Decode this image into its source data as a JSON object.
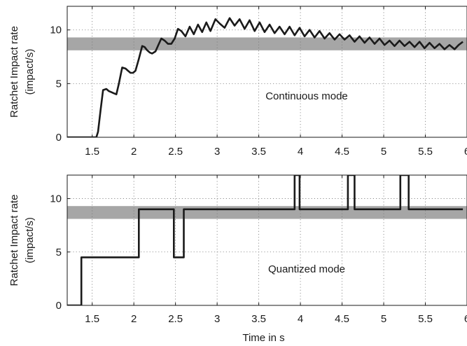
{
  "chart_data": [
    {
      "type": "line",
      "annotation": "Continuous mode",
      "xlabel": "",
      "ylabel": "Ratchet Impact rate",
      "ylabel_unit": "(impact/s)",
      "xlim": [
        1.2,
        6.0
      ],
      "ylim": [
        0,
        12.2
      ],
      "x_ticks": [
        1.5,
        2,
        2.5,
        3,
        3.5,
        4,
        4.5,
        5,
        5.5,
        6
      ],
      "x_tick_labels": [
        "1.5",
        "2",
        "2.5",
        "3",
        "3.5",
        "4",
        "4.5",
        "5",
        "5.5",
        "6"
      ],
      "y_ticks": [
        0,
        5,
        10
      ],
      "y_tick_labels": [
        "0",
        "5",
        "10"
      ],
      "grid": true,
      "band": {
        "y_low": 8.1,
        "y_high": 9.3,
        "color": "#a6a6a6"
      },
      "line_color": "#1a1a1a",
      "series": [
        {
          "x": [
            1.2,
            1.55,
            1.57,
            1.6,
            1.63,
            1.67,
            1.7,
            1.73,
            1.76,
            1.79,
            1.82,
            1.86,
            1.9,
            1.93,
            1.96,
            1.99,
            2.02,
            2.06,
            2.1,
            2.13,
            2.16,
            2.19,
            2.22,
            2.26,
            2.3,
            2.33,
            2.37,
            2.41,
            2.45,
            2.49,
            2.53,
            2.57,
            2.62,
            2.67,
            2.72,
            2.77,
            2.82,
            2.87,
            2.92,
            2.98,
            3.03,
            3.09,
            3.15,
            3.21,
            3.27,
            3.33,
            3.39,
            3.45,
            3.51,
            3.57,
            3.63,
            3.69,
            3.75,
            3.81,
            3.87,
            3.93,
            3.99,
            4.05,
            4.11,
            4.17,
            4.23,
            4.29,
            4.35,
            4.41,
            4.47,
            4.53,
            4.59,
            4.65,
            4.71,
            4.77,
            4.83,
            4.89,
            4.95,
            5.01,
            5.07,
            5.13,
            5.19,
            5.25,
            5.31,
            5.37,
            5.43,
            5.49,
            5.55,
            5.61,
            5.67,
            5.73,
            5.79,
            5.85,
            5.9,
            5.95
          ],
          "y": [
            0,
            0,
            0.5,
            2.5,
            4.4,
            4.5,
            4.3,
            4.2,
            4.1,
            4.0,
            5.0,
            6.5,
            6.4,
            6.2,
            6.0,
            6.0,
            6.2,
            7.3,
            8.5,
            8.4,
            8.1,
            7.9,
            7.8,
            8.0,
            8.7,
            9.2,
            9.0,
            8.7,
            8.7,
            9.2,
            10.1,
            9.9,
            9.4,
            10.3,
            9.6,
            10.5,
            9.8,
            10.7,
            9.9,
            11.0,
            10.6,
            10.2,
            11.1,
            10.4,
            11.0,
            10.1,
            10.9,
            9.9,
            10.7,
            9.8,
            10.5,
            9.7,
            10.3,
            9.6,
            10.3,
            9.5,
            10.2,
            9.4,
            10.0,
            9.3,
            9.9,
            9.2,
            9.7,
            9.1,
            9.6,
            9.1,
            9.5,
            8.9,
            9.4,
            8.8,
            9.3,
            8.7,
            9.2,
            8.6,
            9.0,
            8.5,
            9.0,
            8.5,
            8.9,
            8.4,
            8.9,
            8.3,
            8.8,
            8.3,
            8.7,
            8.2,
            8.6,
            8.2,
            8.6,
            8.9
          ]
        }
      ]
    },
    {
      "type": "line",
      "annotation": "Quantized mode",
      "xlabel": "Time in s",
      "ylabel": "Ratchet Impact rate",
      "ylabel_unit": "(impact/s)",
      "xlim": [
        1.2,
        6.0
      ],
      "ylim": [
        0,
        12.2
      ],
      "x_ticks": [
        1.5,
        2,
        2.5,
        3,
        3.5,
        4,
        4.5,
        5,
        5.5,
        6
      ],
      "x_tick_labels": [
        "1.5",
        "2",
        "2.5",
        "3",
        "3.5",
        "4",
        "4.5",
        "5",
        "5.5",
        "6"
      ],
      "y_ticks": [
        0,
        5,
        10
      ],
      "y_tick_labels": [
        "0",
        "5",
        "10"
      ],
      "grid": true,
      "band": {
        "y_low": 8.1,
        "y_high": 9.3,
        "color": "#a6a6a6"
      },
      "line_color": "#1a1a1a",
      "series": [
        {
          "x": [
            1.2,
            1.37,
            1.37,
            2.06,
            2.06,
            2.48,
            2.48,
            2.6,
            2.6,
            3.93,
            3.93,
            3.99,
            3.99,
            4.57,
            4.57,
            4.65,
            4.65,
            5.2,
            5.2,
            5.3,
            5.3,
            5.95
          ],
          "y": [
            0,
            0,
            4.5,
            4.5,
            9.0,
            9.0,
            4.5,
            4.5,
            9.0,
            9.0,
            12.2,
            12.2,
            9.0,
            9.0,
            12.2,
            12.2,
            9.0,
            9.0,
            12.2,
            12.2,
            9.0,
            9.0
          ]
        }
      ]
    }
  ]
}
